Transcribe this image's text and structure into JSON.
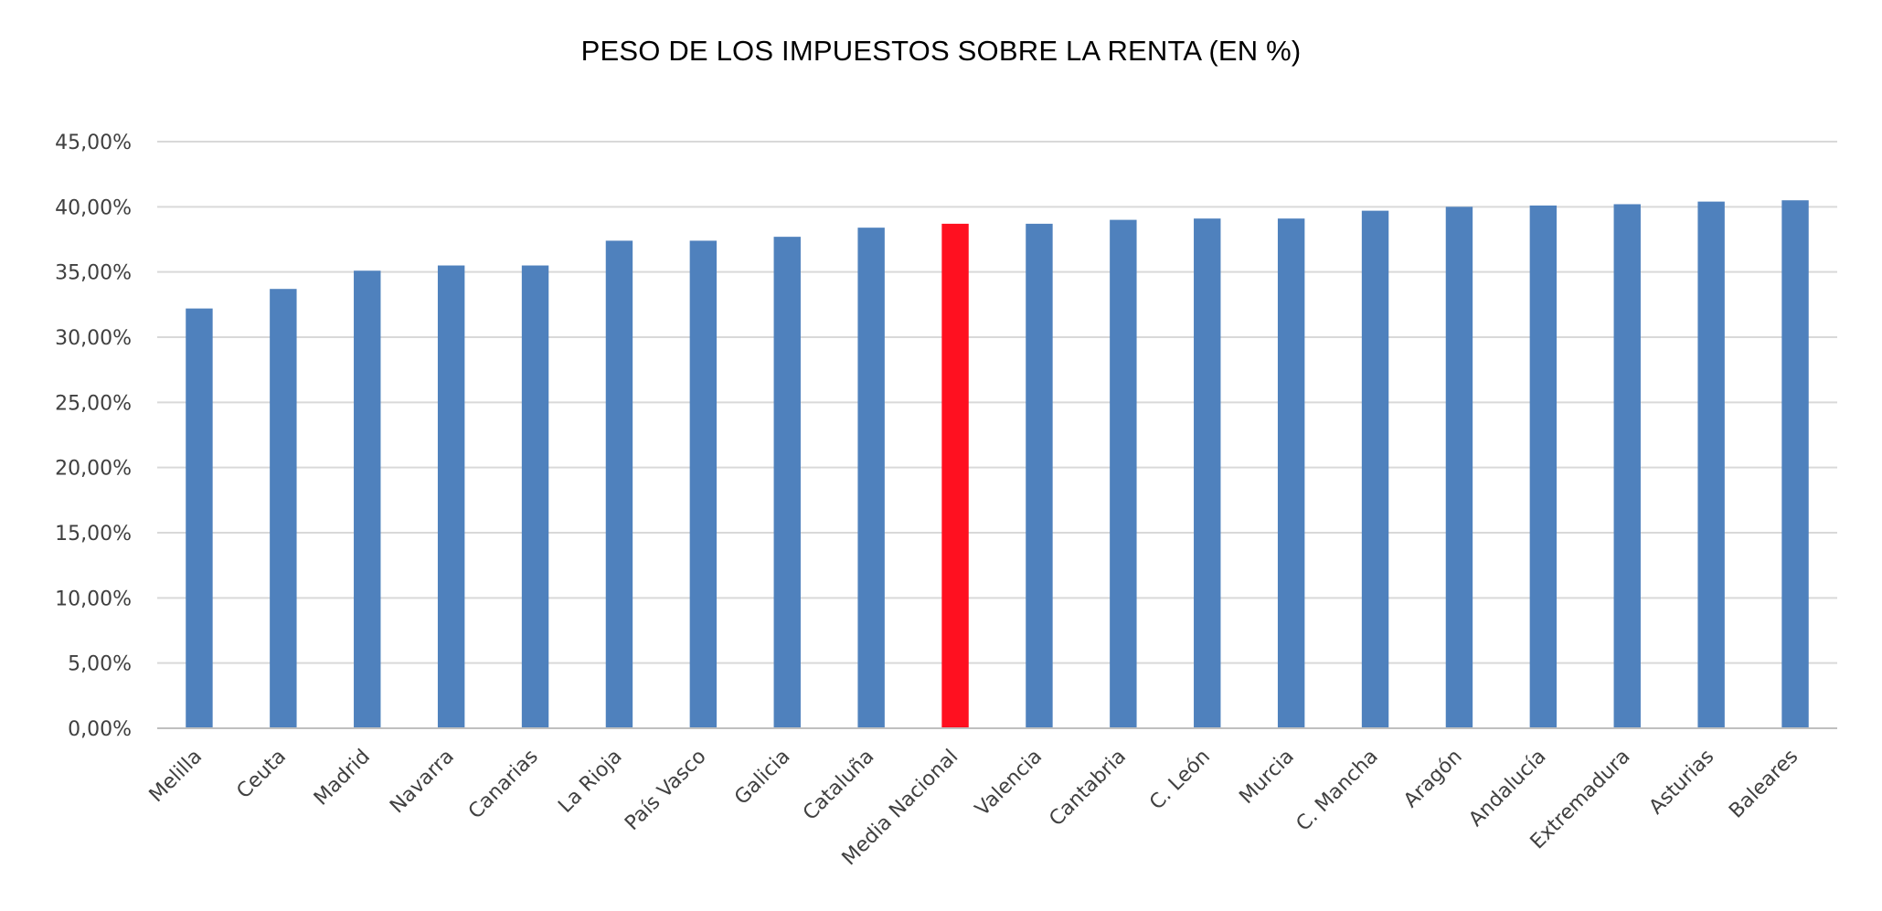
{
  "chart_data": {
    "type": "bar",
    "title": "PESO DE LOS IMPUESTOS SOBRE LA RENTA (EN %)",
    "xlabel": "",
    "ylabel": "",
    "ylim": [
      0,
      45
    ],
    "yticks": [
      "0,00%",
      "5,00%",
      "10,00%",
      "15,00%",
      "20,00%",
      "25,00%",
      "30,00%",
      "35,00%",
      "40,00%",
      "45,00%"
    ],
    "grid": true,
    "legend": "none",
    "categories": [
      "Melilla",
      "Ceuta",
      "Madrid",
      "Navarra",
      "Canarias",
      "La Rioja",
      "País Vasco",
      "Galicia",
      "Cataluña",
      "Media Nacional",
      "Valencia",
      "Cantabria",
      "C. León",
      "Murcia",
      "C. Mancha",
      "Aragón",
      "Andalucía",
      "Extremadura",
      "Asturias",
      "Baleares"
    ],
    "values": [
      32.2,
      33.7,
      35.1,
      35.5,
      35.5,
      37.4,
      37.4,
      37.7,
      38.4,
      38.7,
      38.7,
      39.0,
      39.1,
      39.1,
      39.7,
      40.0,
      40.1,
      40.2,
      40.4,
      40.5
    ],
    "colors": {
      "bar": "#4F81BD",
      "highlight": "#FF1020",
      "grid": "#D9D9D9",
      "axis": "#BFBFBF"
    },
    "highlight_category": "Media Nacional"
  }
}
